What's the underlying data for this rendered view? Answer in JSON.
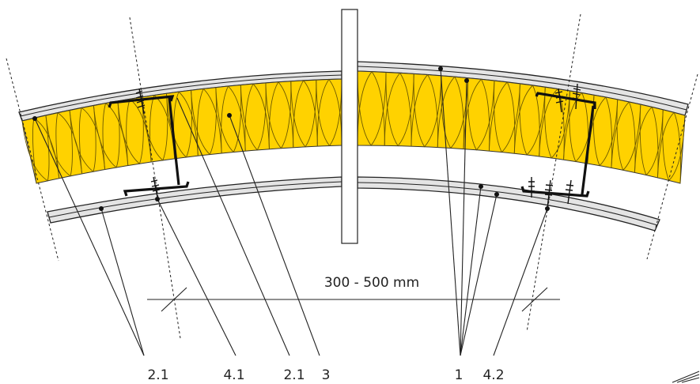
{
  "dimension": {
    "label": "300 - 500 mm"
  },
  "labels": {
    "boards_left_a": "2.1",
    "screw_left": "4.1",
    "boards_left_b": "2.1",
    "insulation": "3",
    "boards_right": "1",
    "screw_right": "4.2"
  },
  "colors": {
    "insulation": "#ffd200",
    "board": "#e4e4e4",
    "line": "#222222"
  }
}
